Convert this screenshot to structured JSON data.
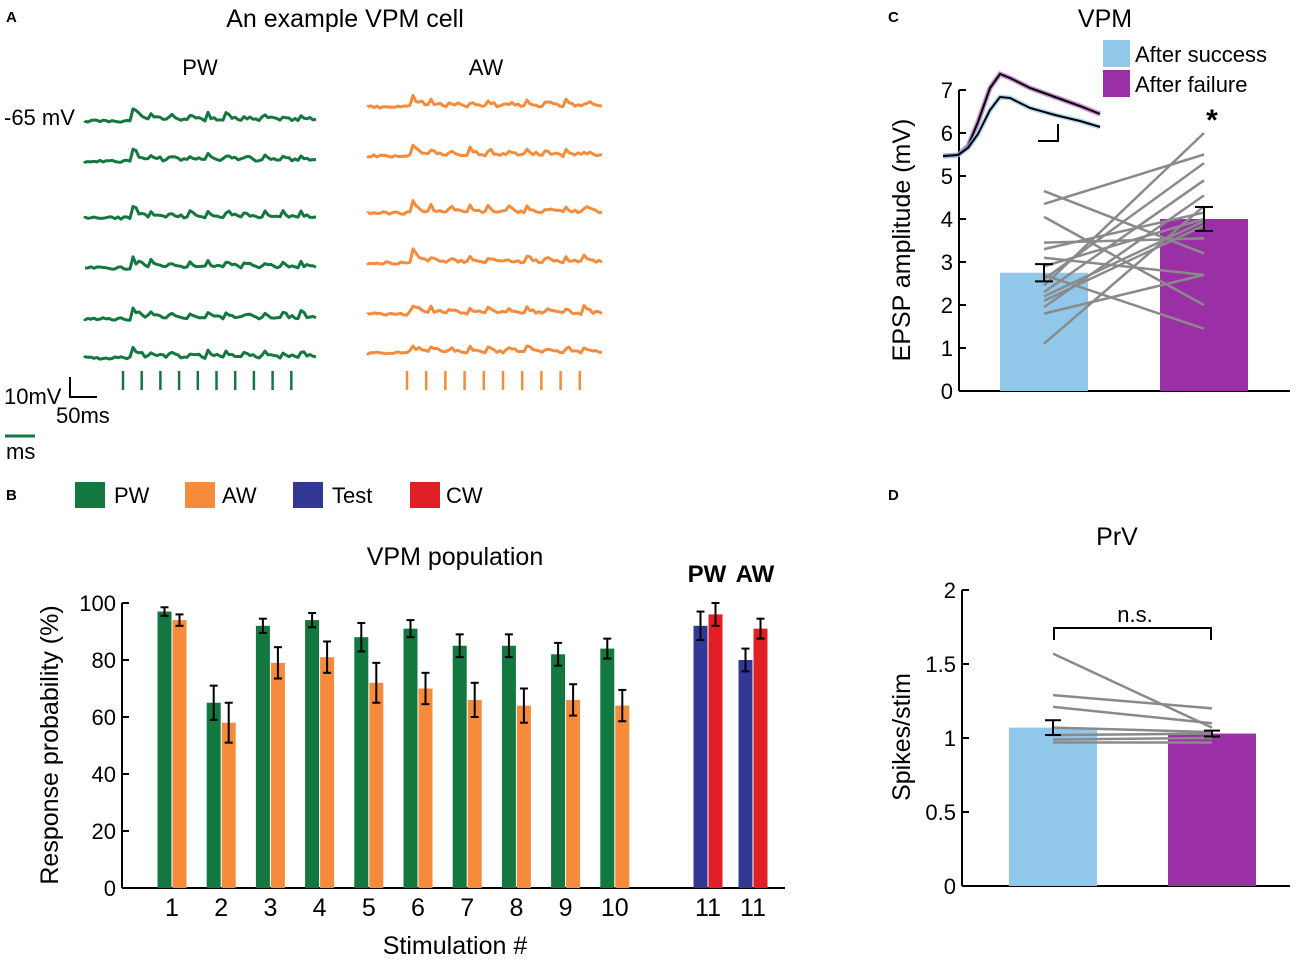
{
  "colors": {
    "pw": "#137740",
    "aw": "#f58b3b",
    "test": "#343895",
    "cw": "#e21e26",
    "success": "#91c8ea",
    "failure": "#9b30a6",
    "line": "#8a8a8a",
    "axis": "#000000"
  },
  "panelA": {
    "letter": "A",
    "title": "An example VPM cell",
    "pw_label": "PW",
    "aw_label": "AW",
    "voltage_label": "-65 mV",
    "scale_v": "10mV",
    "scale_t": "50ms",
    "small_scale": "ms",
    "n_traces": 6,
    "n_stimuli": 10
  },
  "panelB": {
    "letter": "B",
    "legend": [
      {
        "label": "PW",
        "color": "#137740"
      },
      {
        "label": "AW",
        "color": "#f58b3b"
      },
      {
        "label": "Test",
        "color": "#343895"
      },
      {
        "label": "CW",
        "color": "#e21e26"
      }
    ],
    "group_labels": {
      "pw": "PW",
      "aw": "AW"
    }
  },
  "panelC": {
    "letter": "C",
    "legend": {
      "success": "After success",
      "failure": "After failure"
    },
    "significance": "*"
  },
  "panelD": {
    "letter": "D",
    "significance": "n.s."
  },
  "chart_data": [
    {
      "type": "bar",
      "title": "VPM population",
      "xlabel": "Stimulation #",
      "ylabel": "Response probability (%)",
      "ylim": [
        0,
        100
      ],
      "yticks": [
        0,
        20,
        40,
        60,
        80,
        100
      ],
      "categories": [
        "1",
        "2",
        "3",
        "4",
        "5",
        "6",
        "7",
        "8",
        "9",
        "10",
        "11",
        "11"
      ],
      "series": [
        {
          "name": "PW",
          "values": [
            97,
            65,
            92,
            94,
            88,
            91,
            85,
            85,
            82,
            84,
            null,
            null
          ],
          "errors": [
            1.5,
            6,
            2.5,
            2.5,
            5,
            3,
            4,
            4,
            4,
            3.5,
            null,
            null
          ]
        },
        {
          "name": "AW",
          "values": [
            94,
            58,
            79,
            81,
            72,
            70,
            66,
            64,
            66,
            64,
            null,
            null
          ],
          "errors": [
            2,
            7,
            5.5,
            5.5,
            7,
            5.5,
            6,
            6,
            5.5,
            5.5,
            null,
            null
          ]
        },
        {
          "name": "Test",
          "values": [
            null,
            null,
            null,
            null,
            null,
            null,
            null,
            null,
            null,
            null,
            92,
            80
          ],
          "errors": [
            null,
            null,
            null,
            null,
            null,
            null,
            null,
            null,
            null,
            null,
            5,
            4
          ]
        },
        {
          "name": "CW",
          "values": [
            null,
            null,
            null,
            null,
            null,
            null,
            null,
            null,
            null,
            null,
            96,
            91
          ],
          "errors": [
            null,
            null,
            null,
            null,
            null,
            null,
            null,
            null,
            null,
            null,
            4,
            3.5
          ]
        }
      ]
    },
    {
      "type": "bar",
      "title": "VPM",
      "xlabel": "",
      "ylabel": "EPSP amplitude (mV)",
      "ylim": [
        0,
        7
      ],
      "yticks": [
        0,
        1,
        2,
        3,
        4,
        5,
        6,
        7
      ],
      "categories": [
        "After success",
        "After failure"
      ],
      "values": [
        2.75,
        4.0
      ],
      "errors": [
        0.2,
        0.28
      ],
      "paired_lines": [
        [
          4.65,
          3.2
        ],
        [
          4.35,
          5.5
        ],
        [
          4.05,
          2.0
        ],
        [
          3.45,
          3.55
        ],
        [
          3.3,
          4.15
        ],
        [
          3.1,
          2.7
        ],
        [
          2.9,
          4.0
        ],
        [
          2.7,
          1.45
        ],
        [
          2.6,
          5.3
        ],
        [
          2.45,
          6.0
        ],
        [
          2.3,
          4.9
        ],
        [
          2.2,
          3.95
        ],
        [
          2.1,
          3.85
        ],
        [
          1.95,
          4.55
        ],
        [
          1.8,
          2.7
        ],
        [
          1.1,
          4.3
        ]
      ]
    },
    {
      "type": "bar",
      "title": "PrV",
      "xlabel": "",
      "ylabel": "Spikes/stim",
      "ylim": [
        0,
        2
      ],
      "yticks": [
        0,
        0.5,
        1,
        1.5,
        2
      ],
      "categories": [
        "After success",
        "After failure"
      ],
      "values": [
        1.07,
        1.03
      ],
      "errors": [
        0.05,
        0.02
      ],
      "paired_lines": [
        [
          1.57,
          1.07
        ],
        [
          1.29,
          1.2
        ],
        [
          1.21,
          1.1
        ],
        [
          1.07,
          1.04
        ],
        [
          1.02,
          1.03
        ],
        [
          0.99,
          1.0
        ],
        [
          0.97,
          0.97
        ]
      ]
    }
  ]
}
